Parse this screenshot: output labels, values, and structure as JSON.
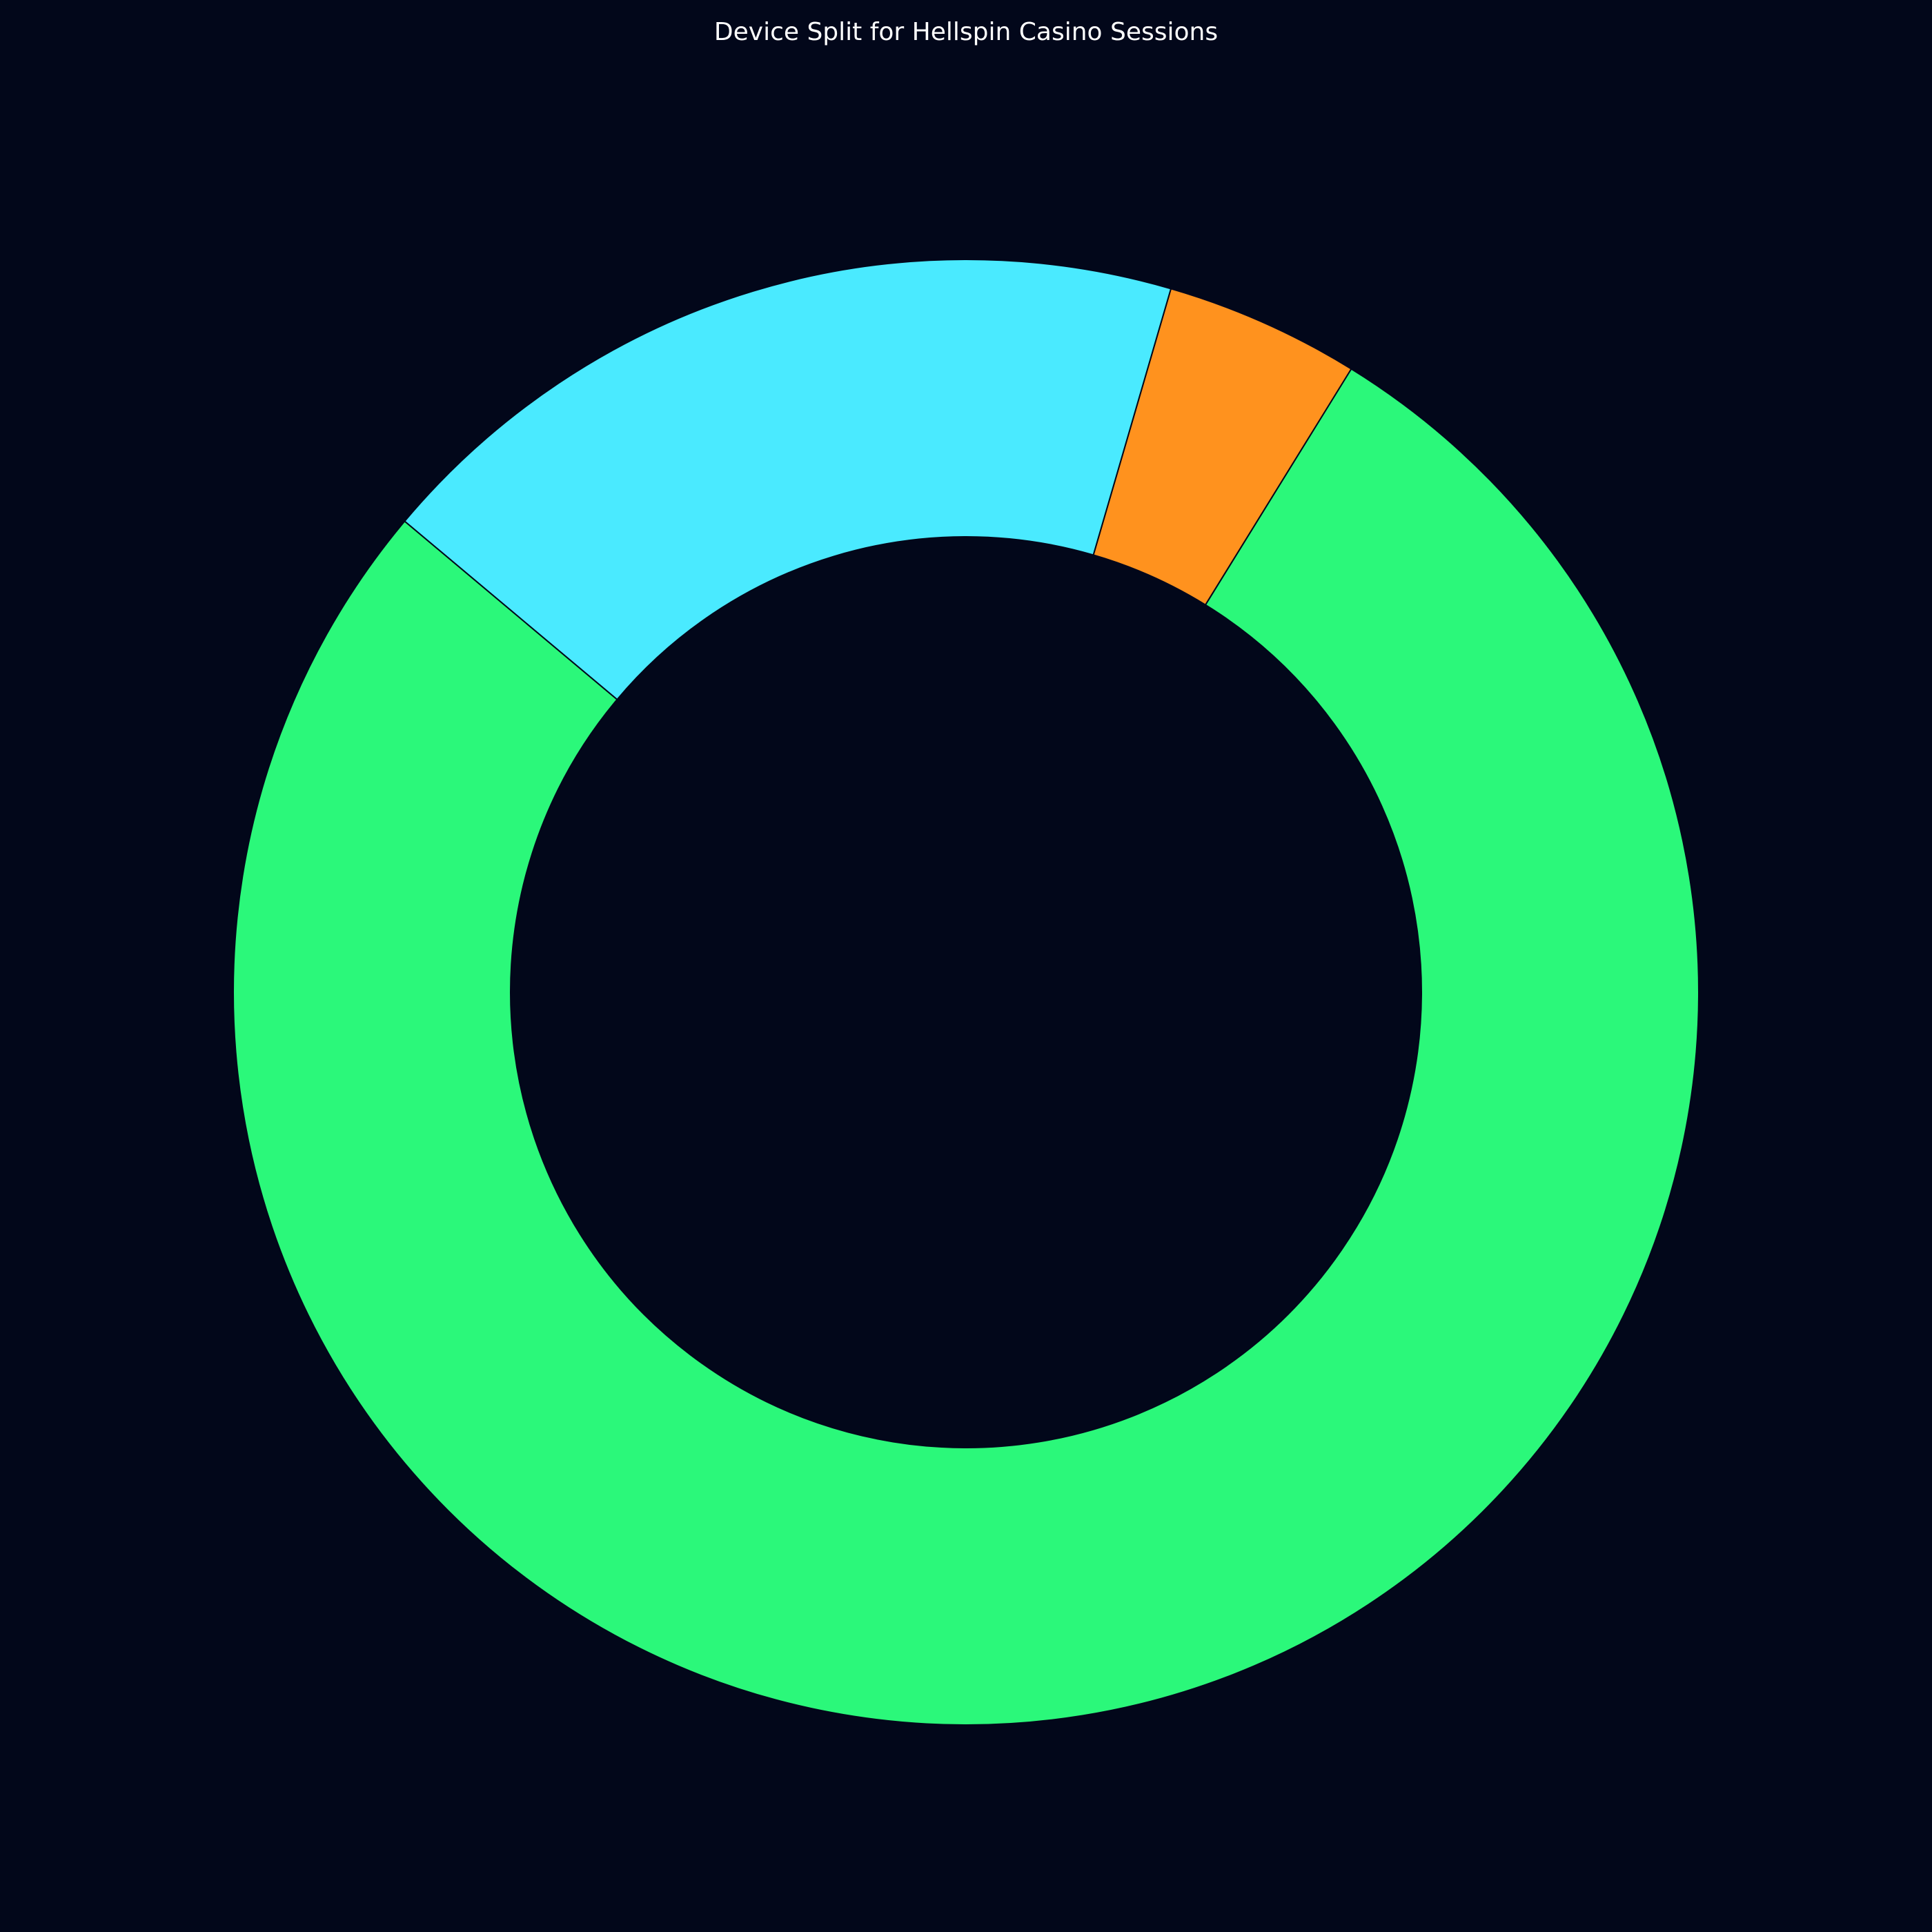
{
  "chart_data": {
    "type": "pie",
    "title": "Device Split for Hellspin Casino Sessions",
    "donut": true,
    "start_angle_deg": 140,
    "direction": "counterclockwise",
    "legend": "none",
    "slices": [
      {
        "value": 77.3,
        "color": "#2bf87a"
      },
      {
        "value": 4.3,
        "color": "#ff921e"
      },
      {
        "value": 18.4,
        "color": "#4aeaff"
      }
    ]
  }
}
